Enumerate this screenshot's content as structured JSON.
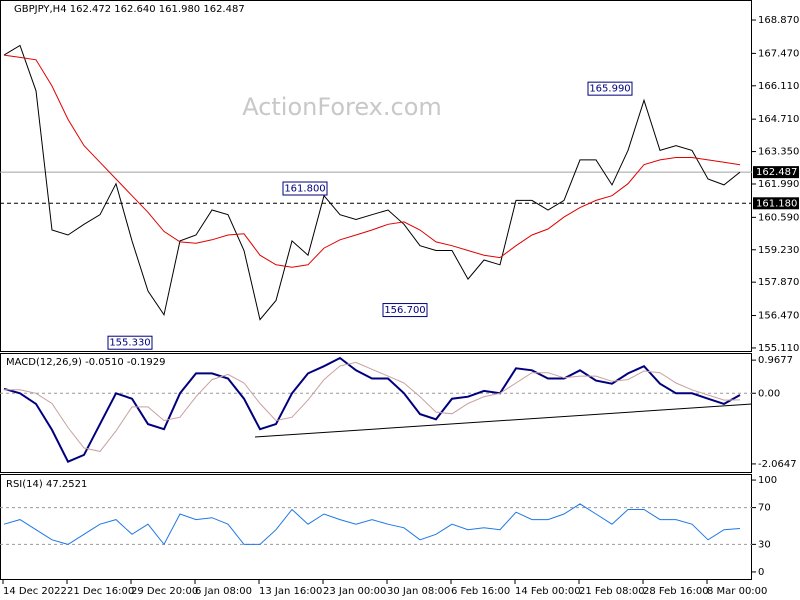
{
  "watermark": "ActionForex.com",
  "x_axis_labels": [
    "14 Dec 2022",
    "21 Dec 16:00",
    "29 Dec 20:00",
    "6 Jan 08:00",
    "13 Jan 16:00",
    "23 Jan 00:00",
    "30 Jan 08:00",
    "6 Feb 16:00",
    "14 Feb 00:00",
    "21 Feb 08:00",
    "28 Feb 16:00",
    "8 Mar 00:00"
  ],
  "chart_data": [
    {
      "type": "line",
      "title": "GBPJPY,H4  162.472 162.640 161.980 162.487",
      "ylim": [
        154.94,
        169.71
      ],
      "yticks": [
        {
          "value": 168.87,
          "label": "168.870"
        },
        {
          "value": 167.47,
          "label": "167.470"
        },
        {
          "value": 166.11,
          "label": "166.110"
        },
        {
          "value": 164.71,
          "label": "164.710"
        },
        {
          "value": 163.35,
          "label": "163.350"
        },
        {
          "value": 161.99,
          "label": "161.990"
        },
        {
          "value": 160.59,
          "label": "160.590"
        },
        {
          "value": 159.23,
          "label": "159.230"
        },
        {
          "value": 157.87,
          "label": "157.870"
        },
        {
          "value": 156.47,
          "label": "156.470"
        },
        {
          "value": 155.11,
          "label": "155.110"
        }
      ],
      "price_line": 162.487,
      "level_line": {
        "value": 161.18,
        "label": "161.180"
      },
      "annotations": [
        {
          "value": 165.99,
          "label": "165.990"
        },
        {
          "value": 161.8,
          "label": "161.800"
        },
        {
          "value": 155.33,
          "label": "155.330"
        },
        {
          "value": 156.7,
          "label": "156.700"
        }
      ],
      "series": [
        {
          "color": "#000000",
          "values": [
            167.4,
            167.8,
            165.9,
            160.06,
            159.85,
            160.3,
            160.7,
            162.0,
            159.6,
            157.5,
            156.5,
            159.6,
            159.85,
            160.9,
            160.7,
            159.2,
            156.3,
            157.1,
            159.6,
            159.0,
            161.5,
            160.7,
            160.5,
            160.7,
            160.9,
            160.3,
            159.4,
            159.2,
            159.2,
            158.0,
            158.8,
            158.6,
            161.3,
            161.3,
            160.9,
            161.3,
            163.0,
            163.0,
            161.95,
            163.4,
            165.5,
            163.4,
            163.6,
            163.4,
            162.2,
            161.95,
            162.487
          ]
        },
        {
          "color": "#e00000",
          "values": [
            167.4,
            167.3,
            167.2,
            166.1,
            164.7,
            163.6,
            162.9,
            162.2,
            161.5,
            160.8,
            160.0,
            159.56,
            159.5,
            159.65,
            159.85,
            159.9,
            159.0,
            158.6,
            158.5,
            158.6,
            159.3,
            159.65,
            159.85,
            160.06,
            160.3,
            160.4,
            160.06,
            159.56,
            159.4,
            159.2,
            159.0,
            158.9,
            159.4,
            159.85,
            160.1,
            160.6,
            161.0,
            161.3,
            161.5,
            162.0,
            162.8,
            163.0,
            163.1,
            163.1,
            163.0,
            162.9,
            162.8
          ]
        }
      ]
    },
    {
      "type": "line",
      "title": "MACD(12,26,9) -0.0510 -0.1929",
      "ylim": [
        -2.33,
        1.176
      ],
      "yticks": [
        0.9677,
        {
          "value": 0,
          "label": "0.00"
        },
        -2.0647
      ],
      "series": [
        {
          "color": "#00007f",
          "values": [
            0.13,
            0,
            -0.31,
            -1.07,
            -2.0,
            -1.8,
            -0.9,
            0.0,
            -0.16,
            -0.9,
            -1.05,
            0,
            0.58,
            0.58,
            0.43,
            -0.16,
            -1.05,
            -0.9,
            0,
            0.58,
            0.79,
            1.03,
            0.67,
            0.43,
            0.43,
            0,
            -0.61,
            -0.76,
            -0.16,
            -0.1,
            0.07,
            0,
            0.73,
            0.67,
            0.43,
            0.43,
            0.67,
            0.37,
            0.28,
            0.58,
            0.79,
            0.28,
            0,
            0,
            -0.16,
            -0.31,
            -0.051
          ]
        },
        {
          "color": "#c8a0a0",
          "values": [
            0.1,
            0.1,
            0.0,
            -0.3,
            -1.0,
            -1.6,
            -1.7,
            -1.1,
            -0.4,
            -0.4,
            -0.8,
            -0.7,
            -0.1,
            0.4,
            0.55,
            0.3,
            -0.3,
            -0.8,
            -0.7,
            -0.2,
            0.4,
            0.8,
            0.9,
            0.7,
            0.5,
            0.3,
            -0.1,
            -0.55,
            -0.6,
            -0.3,
            -0.1,
            0.0,
            0.3,
            0.6,
            0.6,
            0.45,
            0.5,
            0.5,
            0.35,
            0.4,
            0.65,
            0.6,
            0.3,
            0.1,
            -0.05,
            -0.2,
            -0.1929
          ]
        }
      ]
    },
    {
      "type": "line",
      "title": "RSI(14) 47.2521",
      "ylim": [
        -6.6,
        105.5
      ],
      "yticks": [
        100,
        70,
        30,
        0
      ],
      "levels": [
        70,
        30
      ],
      "series": [
        {
          "color": "#1e78e6",
          "values": [
            52,
            57,
            46,
            35,
            30,
            41,
            52,
            57,
            41,
            52,
            30,
            63,
            57,
            59,
            52,
            30,
            30,
            46,
            68,
            52,
            63,
            57,
            52,
            57,
            52,
            48,
            35,
            41,
            52,
            46,
            48,
            46,
            65,
            57,
            57,
            63,
            74,
            63,
            52,
            68,
            68,
            57,
            57,
            52,
            35,
            46,
            47.2521
          ]
        }
      ]
    }
  ]
}
